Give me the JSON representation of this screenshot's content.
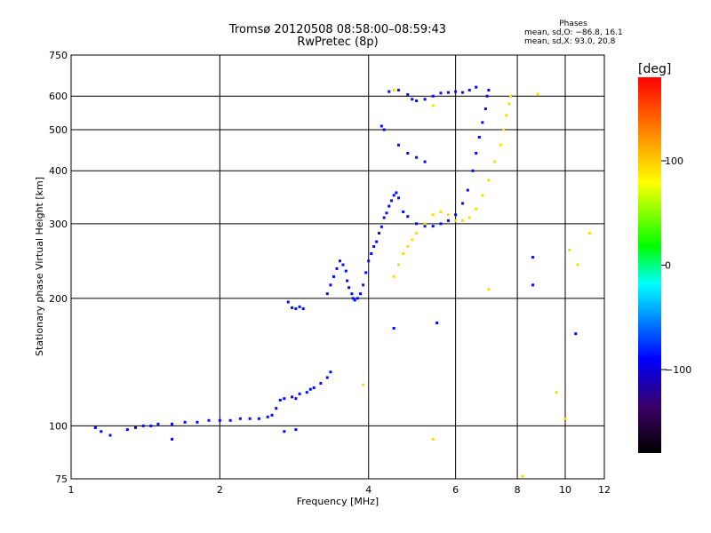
{
  "header": {
    "title_line1": "Tromsø 20120508 08:58:00–08:59:43",
    "title_line2": "RwPretec (8p)"
  },
  "info": {
    "heading": "Phases",
    "line1": "mean, sd,O: −86.8, 16.1",
    "line2": "mean, sd,X: 93.0, 20.8"
  },
  "colorbar": {
    "label": "[deg]",
    "ticks": [
      "100",
      "0",
      "−100"
    ],
    "tick_values": [
      100,
      0,
      -100
    ],
    "range": [
      -180,
      180
    ],
    "palette": [
      "#000000",
      "#3a0063",
      "#0000ff",
      "#00ffff",
      "#00ff00",
      "#ffff00",
      "#ff8000",
      "#ff0000"
    ]
  },
  "chart_data": {
    "type": "scatter",
    "title": "Tromsø 20120508 08:58:00–08:59:43",
    "subtitle": "RwPretec (8p)",
    "xlabel": "Frequency [MHz]",
    "ylabel": "Stationary phase Virtual Height [km]",
    "xscale": "log",
    "yscale": "log",
    "xlim": [
      1,
      12
    ],
    "ylim": [
      75,
      750
    ],
    "xticks": [
      1,
      2,
      4,
      6,
      8,
      10,
      12
    ],
    "xtick_labels": [
      "1",
      "2",
      "4",
      "6",
      "8",
      "10",
      "12"
    ],
    "yticks": [
      75,
      100,
      200,
      300,
      400,
      500,
      600,
      750
    ],
    "ytick_labels": [
      "75",
      "100",
      "200",
      "300",
      "400",
      "500",
      "600",
      "750"
    ],
    "grid": true,
    "color_scale": "phase [deg], -180 to 180",
    "series": [
      {
        "name": "O-mode",
        "phase_deg": -86.8,
        "points": [
          [
            1.12,
            99
          ],
          [
            1.15,
            97
          ],
          [
            1.3,
            98
          ],
          [
            1.35,
            99
          ],
          [
            1.4,
            100
          ],
          [
            1.45,
            100
          ],
          [
            1.5,
            101
          ],
          [
            1.6,
            101
          ],
          [
            1.7,
            102
          ],
          [
            1.8,
            102
          ],
          [
            1.9,
            103
          ],
          [
            2.0,
            103
          ],
          [
            2.1,
            103
          ],
          [
            2.2,
            104
          ],
          [
            2.3,
            104
          ],
          [
            2.4,
            104
          ],
          [
            2.5,
            105
          ],
          [
            2.55,
            106
          ],
          [
            2.6,
            110
          ],
          [
            2.65,
            115
          ],
          [
            2.7,
            116
          ],
          [
            2.8,
            117
          ],
          [
            2.85,
            116
          ],
          [
            2.9,
            119
          ],
          [
            3.0,
            120
          ],
          [
            3.05,
            122
          ],
          [
            3.1,
            123
          ],
          [
            3.2,
            126
          ],
          [
            3.3,
            130
          ],
          [
            3.35,
            134
          ],
          [
            2.75,
            196
          ],
          [
            2.8,
            190
          ],
          [
            2.85,
            189
          ],
          [
            2.9,
            191
          ],
          [
            2.95,
            189
          ],
          [
            3.3,
            205
          ],
          [
            3.35,
            215
          ],
          [
            3.4,
            225
          ],
          [
            3.45,
            235
          ],
          [
            3.5,
            245
          ],
          [
            3.55,
            240
          ],
          [
            3.6,
            232
          ],
          [
            3.62,
            220
          ],
          [
            3.65,
            212
          ],
          [
            3.7,
            205
          ],
          [
            3.72,
            200
          ],
          [
            3.75,
            198
          ],
          [
            3.8,
            200
          ],
          [
            3.85,
            205
          ],
          [
            3.9,
            215
          ],
          [
            3.95,
            230
          ],
          [
            4.0,
            245
          ],
          [
            4.05,
            255
          ],
          [
            4.1,
            265
          ],
          [
            4.15,
            272
          ],
          [
            4.2,
            285
          ],
          [
            4.25,
            295
          ],
          [
            4.3,
            310
          ],
          [
            4.35,
            318
          ],
          [
            4.4,
            330
          ],
          [
            4.45,
            340
          ],
          [
            4.5,
            350
          ],
          [
            4.55,
            355
          ],
          [
            4.6,
            345
          ],
          [
            4.7,
            320
          ],
          [
            4.8,
            312
          ],
          [
            5.0,
            300
          ],
          [
            5.2,
            296
          ],
          [
            5.4,
            296
          ],
          [
            5.6,
            300
          ],
          [
            5.8,
            305
          ],
          [
            6.0,
            315
          ],
          [
            6.2,
            335
          ],
          [
            6.35,
            360
          ],
          [
            6.5,
            400
          ],
          [
            6.6,
            440
          ],
          [
            6.7,
            480
          ],
          [
            6.8,
            520
          ],
          [
            6.9,
            560
          ],
          [
            6.95,
            600
          ],
          [
            7.0,
            620
          ],
          [
            4.4,
            615
          ],
          [
            4.6,
            620
          ],
          [
            4.8,
            605
          ],
          [
            4.9,
            590
          ],
          [
            5.0,
            585
          ],
          [
            5.2,
            590
          ],
          [
            5.4,
            600
          ],
          [
            5.6,
            610
          ],
          [
            5.8,
            612
          ],
          [
            6.0,
            615
          ],
          [
            6.2,
            612
          ],
          [
            6.4,
            620
          ],
          [
            6.6,
            630
          ],
          [
            4.3,
            500
          ],
          [
            4.25,
            510
          ],
          [
            4.6,
            460
          ],
          [
            4.8,
            440
          ],
          [
            5.0,
            430
          ],
          [
            5.2,
            420
          ],
          [
            1.2,
            95
          ],
          [
            1.6,
            93
          ],
          [
            2.7,
            97
          ],
          [
            2.85,
            98
          ],
          [
            4.5,
            170
          ],
          [
            5.5,
            175
          ],
          [
            10.5,
            165
          ],
          [
            8.6,
            250
          ],
          [
            8.6,
            215
          ]
        ]
      },
      {
        "name": "X-mode",
        "phase_deg": 93.0,
        "points": [
          [
            4.5,
            225
          ],
          [
            4.6,
            240
          ],
          [
            4.7,
            255
          ],
          [
            4.8,
            265
          ],
          [
            4.9,
            275
          ],
          [
            5.0,
            285
          ],
          [
            5.2,
            300
          ],
          [
            5.4,
            315
          ],
          [
            5.6,
            320
          ],
          [
            5.8,
            315
          ],
          [
            6.0,
            305
          ],
          [
            6.2,
            305
          ],
          [
            6.4,
            310
          ],
          [
            6.6,
            325
          ],
          [
            6.8,
            350
          ],
          [
            7.0,
            380
          ],
          [
            7.2,
            420
          ],
          [
            7.4,
            460
          ],
          [
            7.5,
            500
          ],
          [
            7.6,
            540
          ],
          [
            7.7,
            575
          ],
          [
            7.75,
            600
          ],
          [
            3.9,
            125
          ],
          [
            4.5,
            620
          ],
          [
            5.4,
            570
          ],
          [
            5.4,
            93
          ],
          [
            7.0,
            210
          ],
          [
            8.8,
            607
          ],
          [
            9.6,
            120
          ],
          [
            10.2,
            260
          ],
          [
            10.6,
            240
          ],
          [
            11.2,
            285
          ],
          [
            10.0,
            104
          ],
          [
            8.2,
            76
          ]
        ]
      }
    ]
  }
}
